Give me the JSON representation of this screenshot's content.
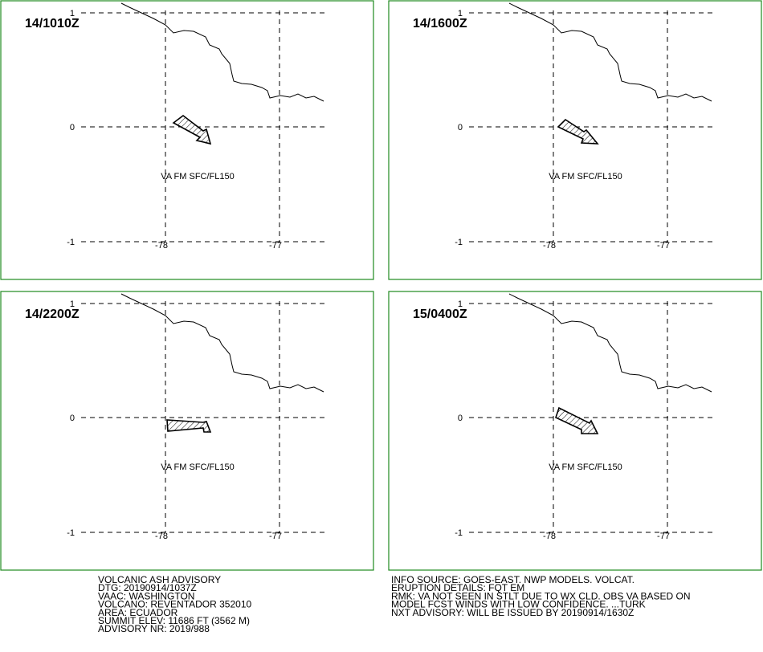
{
  "panels": [
    {
      "time": "14/1010Z",
      "layer": "VA FM SFC/FL150"
    },
    {
      "time": "14/1600Z",
      "layer": "VA FM SFC/FL150"
    },
    {
      "time": "14/2200Z",
      "layer": "VA FM SFC/FL150"
    },
    {
      "time": "15/0400Z",
      "layer": "VA FM SFC/FL150"
    }
  ],
  "lat_labels": [
    "1",
    "0",
    "-1"
  ],
  "lon_labels": [
    "-78",
    "-77"
  ],
  "advisory_left": [
    "VOLCANIC ASH ADVISORY",
    "DTG: 20190914/1037Z",
    "VAAC: WASHINGTON",
    "VOLCANO: REVENTADOR 352010",
    "AREA: ECUADOR",
    "SUMMIT ELEV: 11686 FT (3562 M)",
    "ADVISORY NR: 2019/988"
  ],
  "advisory_right": [
    "INFO SOURCE: GOES-EAST. NWP MODELS. VOLCAT.",
    "ERUPTION DETAILS: FQT EM",
    "RMK: VA NOT SEEN IN STLT DUE TO WX CLD. OBS VA BASED ON",
    "MODEL FCST WINDS WITH LOW CONFIDENCE. ...TURK",
    "NXT ADVISORY: WILL BE ISSUED BY 20190914/1630Z"
  ]
}
